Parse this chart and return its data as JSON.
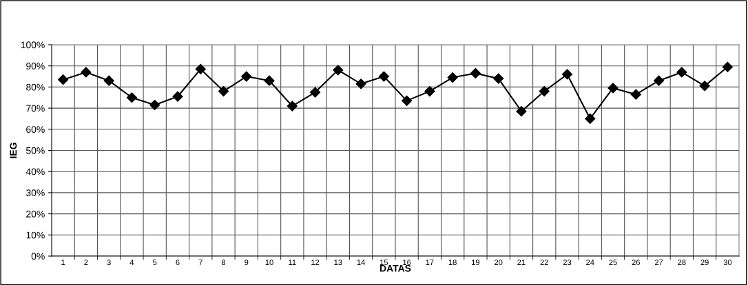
{
  "chart_data": {
    "type": "line",
    "xlabel": "DATAS",
    "ylabel": "IEG",
    "categories": [
      "1",
      "2",
      "3",
      "4",
      "5",
      "6",
      "7",
      "8",
      "9",
      "10",
      "11",
      "12",
      "13",
      "14",
      "15",
      "16",
      "17",
      "18",
      "19",
      "20",
      "21",
      "22",
      "23",
      "24",
      "25",
      "26",
      "27",
      "28",
      "29",
      "30"
    ],
    "series": [
      {
        "color": "#000000",
        "values": [
          83.5,
          87,
          83,
          75,
          71.5,
          75.5,
          88.5,
          78,
          85,
          83,
          71,
          77.5,
          88,
          81.5,
          85,
          73.5,
          78,
          84.5,
          86.5,
          84,
          68.5,
          78,
          86,
          65,
          79.5,
          76.5,
          83,
          87,
          80.5,
          89.5
        ]
      }
    ],
    "ylim": [
      0,
      100
    ],
    "yticks": [
      {
        "value": 0,
        "label": "0%"
      },
      {
        "value": 10,
        "label": "10%"
      },
      {
        "value": 20,
        "label": "20%"
      },
      {
        "value": 30,
        "label": "30%"
      },
      {
        "value": 40,
        "label": "40%"
      },
      {
        "value": 50,
        "label": "50%"
      },
      {
        "value": 60,
        "label": "60%"
      },
      {
        "value": 70,
        "label": "70%"
      },
      {
        "value": 80,
        "label": "80%"
      },
      {
        "value": 90,
        "label": "90%"
      },
      {
        "value": 100,
        "label": "100%"
      }
    ],
    "grid": true,
    "marker": "diamond",
    "line_style": "solid"
  }
}
